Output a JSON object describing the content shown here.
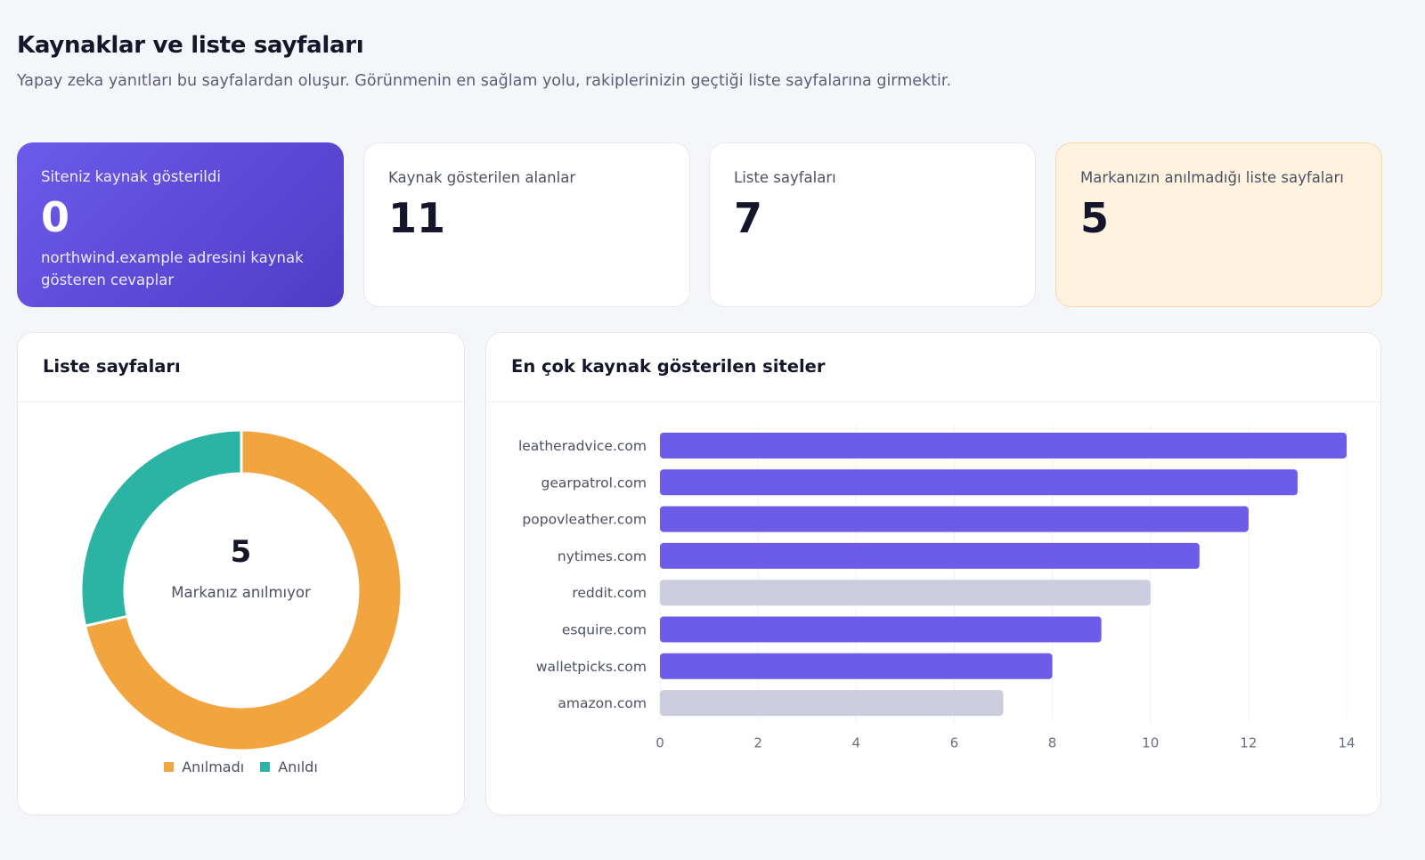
{
  "header": {
    "title": "Kaynaklar ve liste sayfaları",
    "subtitle": "Yapay zeka yanıtları bu sayfalardan oluşur. Görünmenin en sağlam yolu, rakiplerinizin geçtiği liste sayfalarına girmektir."
  },
  "stats": [
    {
      "label": "Siteniz kaynak gösterildi",
      "value": "0",
      "desc": "northwind.example adresini kaynak gösteren cevaplar"
    },
    {
      "label": "Kaynak gösterilen alanlar",
      "value": "11"
    },
    {
      "label": "Liste sayfaları",
      "value": "7"
    },
    {
      "label": "Markanızın anılmadığı liste sayfaları",
      "value": "5"
    }
  ],
  "donut_panel": {
    "title": "Liste sayfaları",
    "center_value": "5",
    "center_label": "Markanız anılmıyor"
  },
  "bar_panel": {
    "title": "En çok kaynak gösterilen siteler"
  },
  "colors": {
    "accent": "#6c5bea",
    "bar_competitor": "#6c5ce7",
    "bar_neutral": "#cbcddf",
    "unmentioned": "#f2a43f",
    "mentioned": "#2bb3a3"
  },
  "chart_data": [
    {
      "type": "pie",
      "categories": [
        "Anılmadı",
        "Anıldı"
      ],
      "values": [
        5,
        2
      ],
      "colors": [
        "#f2a43f",
        "#2bb3a3"
      ],
      "legend": "bottom"
    },
    {
      "type": "bar",
      "orientation": "horizontal",
      "categories": [
        "leatheradvice.com",
        "gearpatrol.com",
        "popovleather.com",
        "nytimes.com",
        "reddit.com",
        "esquire.com",
        "walletpicks.com",
        "amazon.com"
      ],
      "values": [
        14,
        13,
        12,
        11,
        10,
        9,
        8,
        7
      ],
      "highlight": [
        true,
        true,
        true,
        true,
        false,
        true,
        true,
        false
      ],
      "xlim": [
        0,
        14
      ],
      "xticks": [
        0,
        2,
        4,
        6,
        8,
        10,
        12,
        14
      ],
      "grid": true
    }
  ]
}
